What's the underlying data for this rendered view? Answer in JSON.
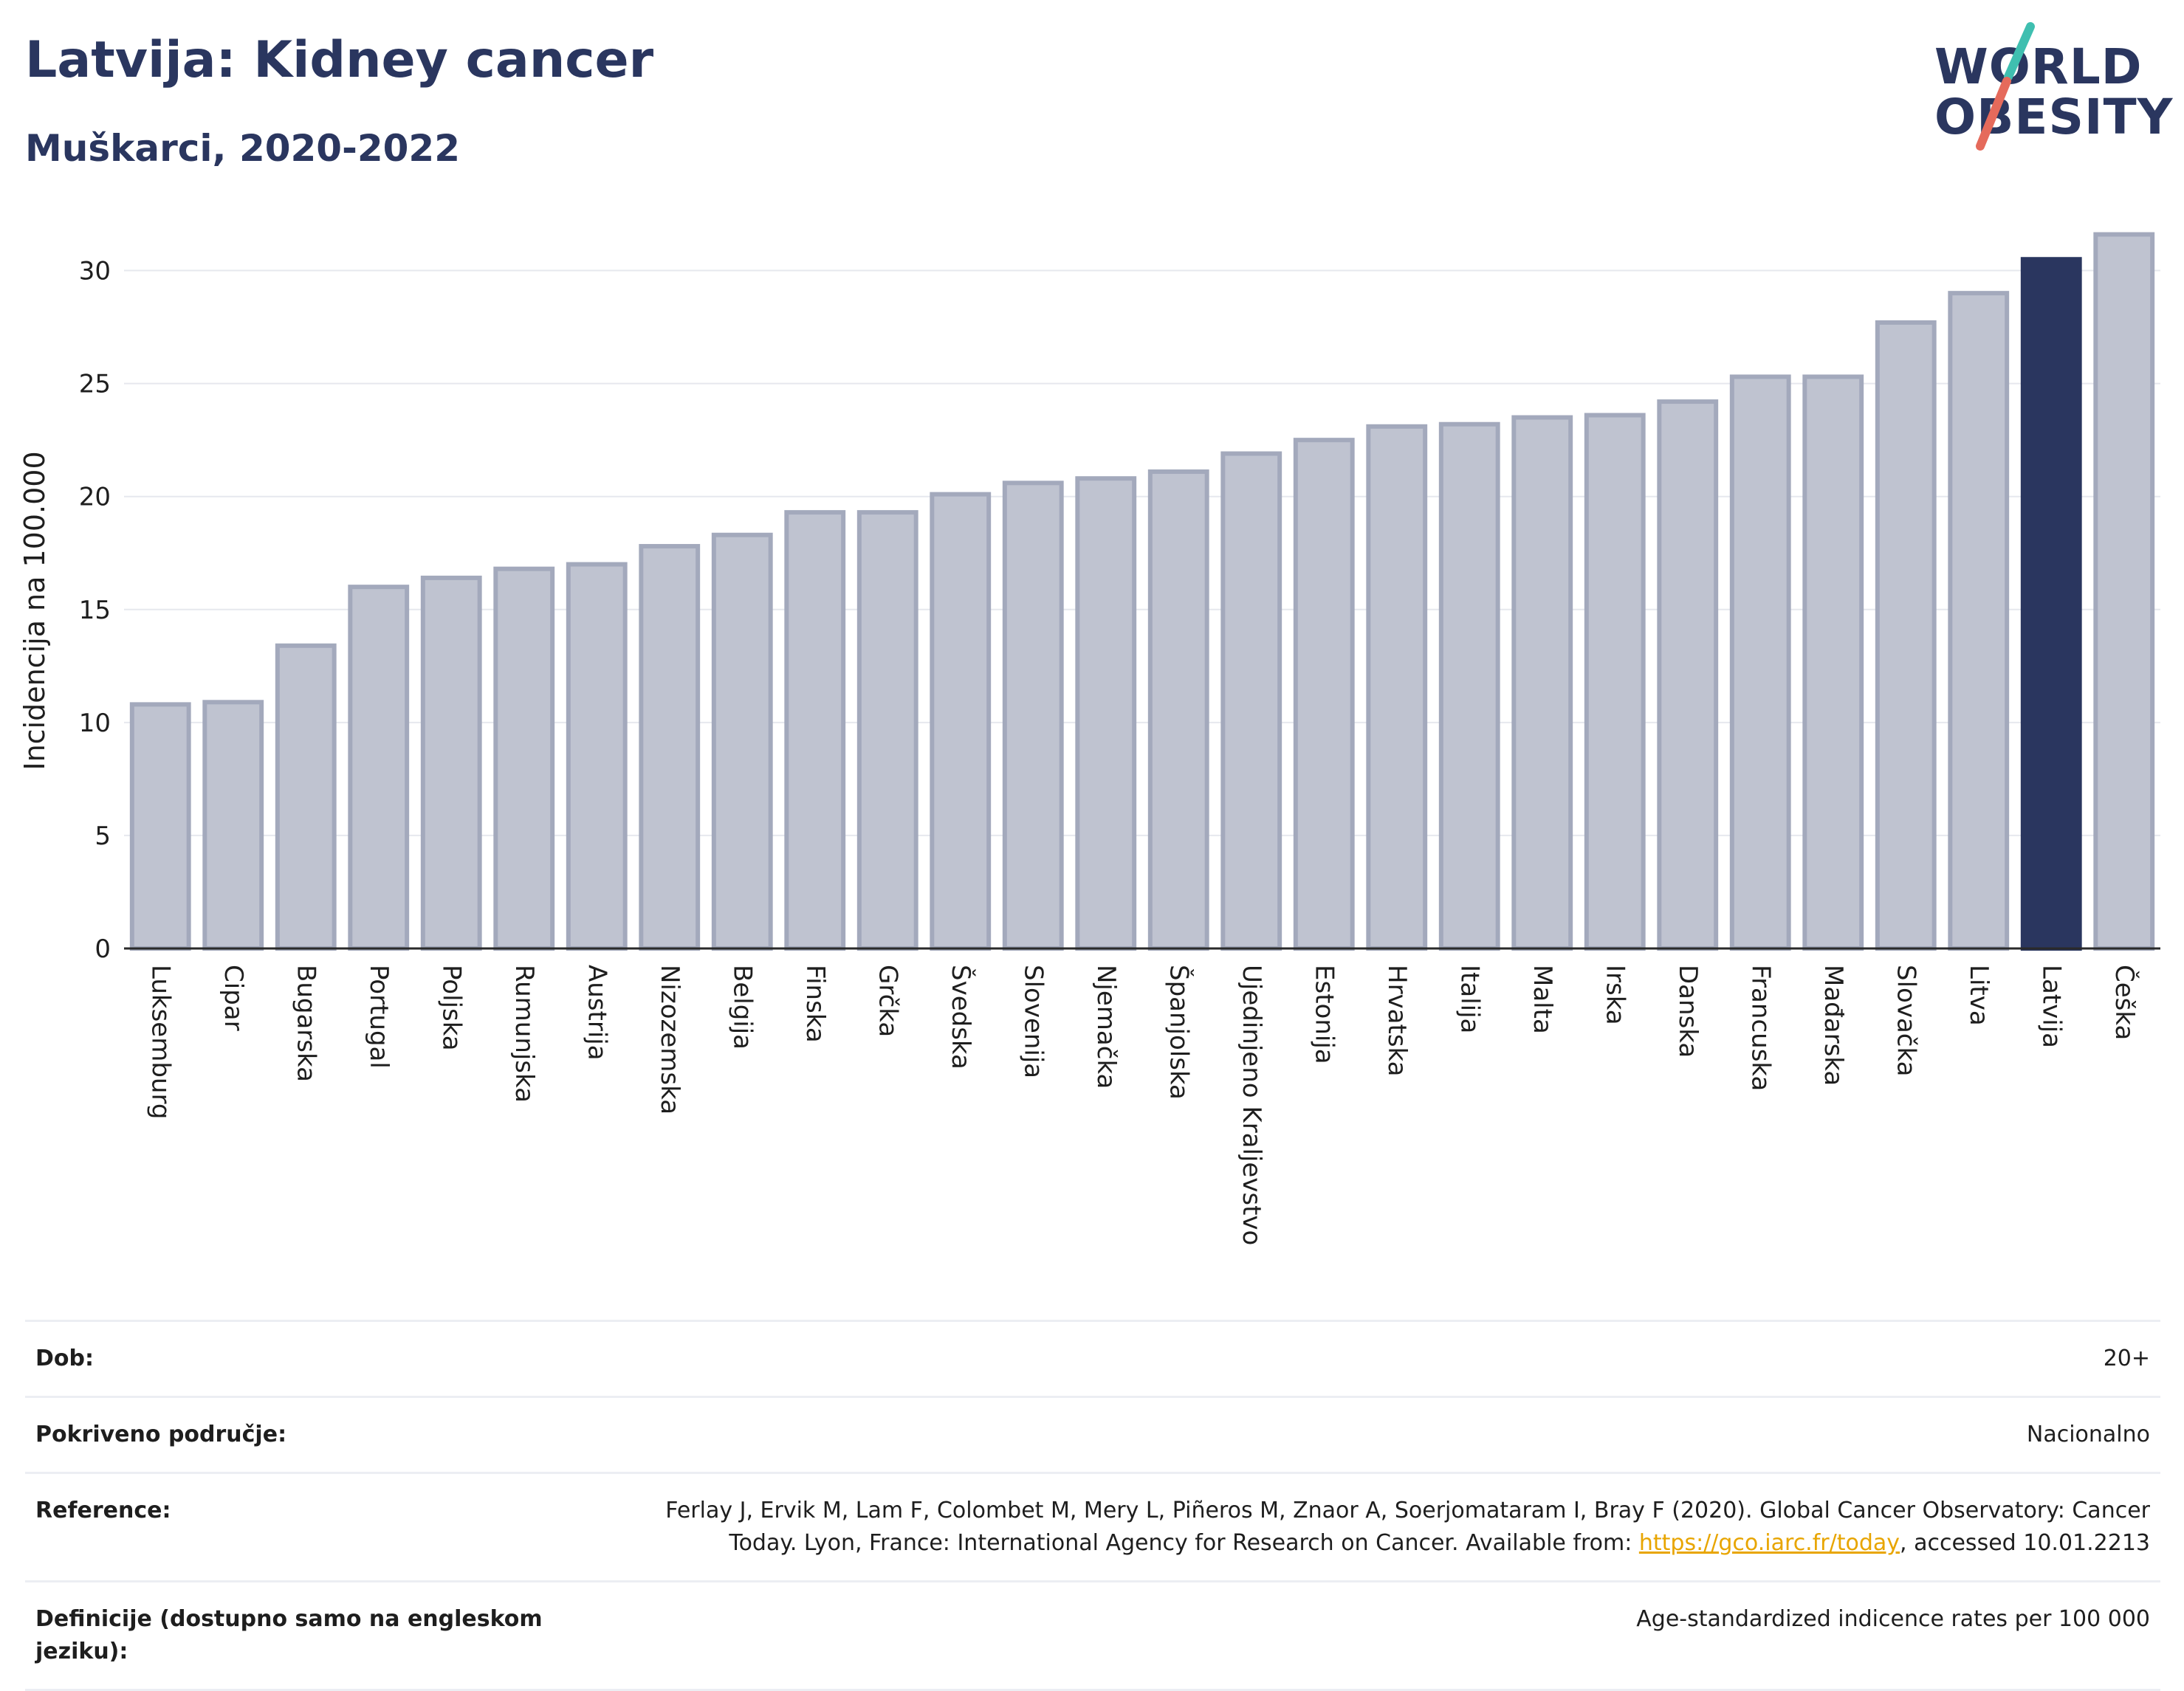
{
  "header": {
    "title": "Latvija: Kidney cancer",
    "subtitle": "Muškarci, 2020-2022"
  },
  "logo": {
    "line1": "WORLD",
    "line2": "OBESITY",
    "text_color": "#2a365f",
    "slash_top_color": "#3fbfb0",
    "slash_bottom_color": "#e56a5b"
  },
  "colors": {
    "bar_default": "#bfc3d0",
    "bar_default_stroke": "#a3a9bc",
    "bar_highlight": "#2a365f",
    "grid": "#e6e8ee",
    "axis": "#2a2a2a"
  },
  "chart_data": {
    "type": "bar",
    "ylabel": "Incidencija na 100.000",
    "ylim": [
      0,
      32.5
    ],
    "yticks": [
      0,
      5,
      10,
      15,
      20,
      25,
      30
    ],
    "grid": true,
    "highlight": "Latvija",
    "categories": [
      "Luksemburg",
      "Cipar",
      "Bugarska",
      "Portugal",
      "Poljska",
      "Rumunjska",
      "Austrija",
      "Nizozemska",
      "Belgija",
      "Finska",
      "Grčka",
      "Švedska",
      "Slovenija",
      "Njemačka",
      "Španjolska",
      "Ujedinjeno Kraljevstvo",
      "Estonija",
      "Hrvatska",
      "Italija",
      "Malta",
      "Irska",
      "Danska",
      "Francuska",
      "Mađarska",
      "Slovačka",
      "Litva",
      "Latvija",
      "Češka"
    ],
    "values": [
      10.8,
      10.9,
      13.4,
      16.0,
      16.4,
      16.8,
      17.0,
      17.8,
      18.3,
      19.3,
      19.3,
      20.1,
      20.6,
      20.8,
      21.1,
      21.9,
      22.5,
      23.1,
      23.2,
      23.5,
      23.6,
      24.2,
      25.3,
      25.3,
      27.7,
      29.0,
      30.5,
      31.6
    ]
  },
  "info": {
    "age_label": "Dob:",
    "age_value": "20+",
    "coverage_label": "Pokriveno područje:",
    "coverage_value": "Nacionalno",
    "reference_label": "Reference:",
    "reference_text_before": "Ferlay J, Ervik M, Lam F, Colombet M, Mery L, Piñeros M, Znaor A, Soerjomataram I, Bray F (2020). Global Cancer Observatory: Cancer Today. Lyon, France: International Agency for Research on Cancer. Available from: ",
    "reference_link": "https://gco.iarc.fr/today",
    "reference_text_after": ", accessed 10.01.2213",
    "definition_label": "Definicije (dostupno samo na engleskom jeziku):",
    "definition_value": "Age-standardized indicence rates per 100 000"
  }
}
